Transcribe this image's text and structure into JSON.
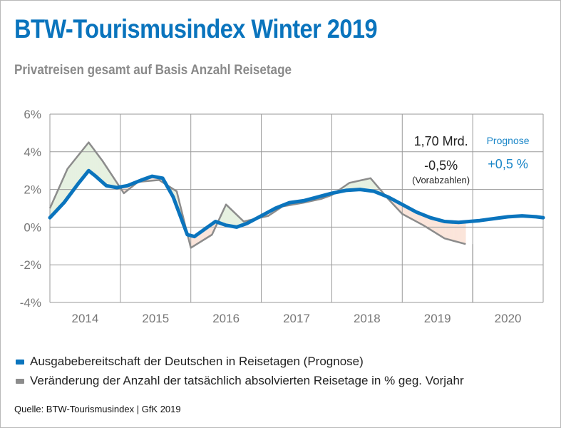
{
  "header": {
    "title": "BTW-Tourismusindex Winter 2019",
    "subtitle": "Privatreisen gesamt auf Basis Anzahl Reisetage"
  },
  "annotations": {
    "volume": "1,70 Mrd.",
    "change_actual": "-0,5%",
    "change_note": "(Vorabzahlen)",
    "forecast_label": "Prognose",
    "forecast_value": "+0,5 %"
  },
  "source": "Quelle: BTW-Tourismusindex | GfK 2019",
  "colors": {
    "blue": "#0a74bd",
    "gray": "#8c8c8c",
    "green_fill": "#e6f1e1",
    "orange_fill": "#fbe5db",
    "forecast_text": "#1a86c8"
  },
  "chart_data": {
    "type": "line",
    "categories": [
      "2014",
      "2015",
      "2016",
      "2017",
      "2018",
      "2019",
      "2020"
    ],
    "y_tick_labels": [
      "6%",
      "4%",
      "2%",
      "0%",
      "-2%",
      "-4%"
    ],
    "ylim": [
      -4,
      6
    ],
    "xlim": [
      2013.5,
      2020.5
    ],
    "grid": true,
    "legend_position": "bottom",
    "series": [
      {
        "name": "Ausgabebereitschaft der Deutschen in Reisetagen (Prognose)",
        "color": "#0a74bd",
        "x": [
          2013.5,
          2013.7,
          2013.9,
          2014.05,
          2014.15,
          2014.3,
          2014.45,
          2014.6,
          2014.8,
          2014.95,
          2015.1,
          2015.25,
          2015.45,
          2015.55,
          2015.7,
          2015.85,
          2016.0,
          2016.15,
          2016.3,
          2016.5,
          2016.7,
          2016.9,
          2017.1,
          2017.3,
          2017.5,
          2017.7,
          2017.9,
          2018.1,
          2018.3,
          2018.5,
          2018.7,
          2018.9,
          2019.1,
          2019.3,
          2019.45,
          2019.6,
          2019.8,
          2020.0,
          2020.2,
          2020.4,
          2020.5
        ],
        "values": [
          0.5,
          1.3,
          2.3,
          3.0,
          2.7,
          2.2,
          2.1,
          2.2,
          2.5,
          2.7,
          2.6,
          1.6,
          -0.4,
          -0.5,
          -0.1,
          0.3,
          0.1,
          0.0,
          0.2,
          0.6,
          1.0,
          1.3,
          1.4,
          1.6,
          1.8,
          1.95,
          2.0,
          1.9,
          1.6,
          1.2,
          0.8,
          0.5,
          0.3,
          0.25,
          0.3,
          0.35,
          0.45,
          0.55,
          0.6,
          0.55,
          0.5
        ]
      },
      {
        "name": "Veränderung der Anzahl der tatsächlich absolvierten Reisetage in % geg. Vorjahr",
        "color": "#8c8c8c",
        "x": [
          2013.5,
          2013.75,
          2014.05,
          2014.25,
          2014.55,
          2014.75,
          2015.05,
          2015.3,
          2015.5,
          2015.8,
          2016.0,
          2016.25,
          2016.6,
          2016.8,
          2017.1,
          2017.35,
          2017.5,
          2017.75,
          2018.05,
          2018.3,
          2018.5,
          2018.8,
          2019.1,
          2019.4
        ],
        "values": [
          1.0,
          3.1,
          4.5,
          3.5,
          1.8,
          2.4,
          2.5,
          1.9,
          -1.1,
          -0.4,
          1.2,
          0.3,
          0.6,
          1.1,
          1.3,
          1.5,
          1.7,
          2.35,
          2.6,
          1.5,
          0.7,
          0.1,
          -0.6,
          -0.9
        ]
      }
    ]
  }
}
